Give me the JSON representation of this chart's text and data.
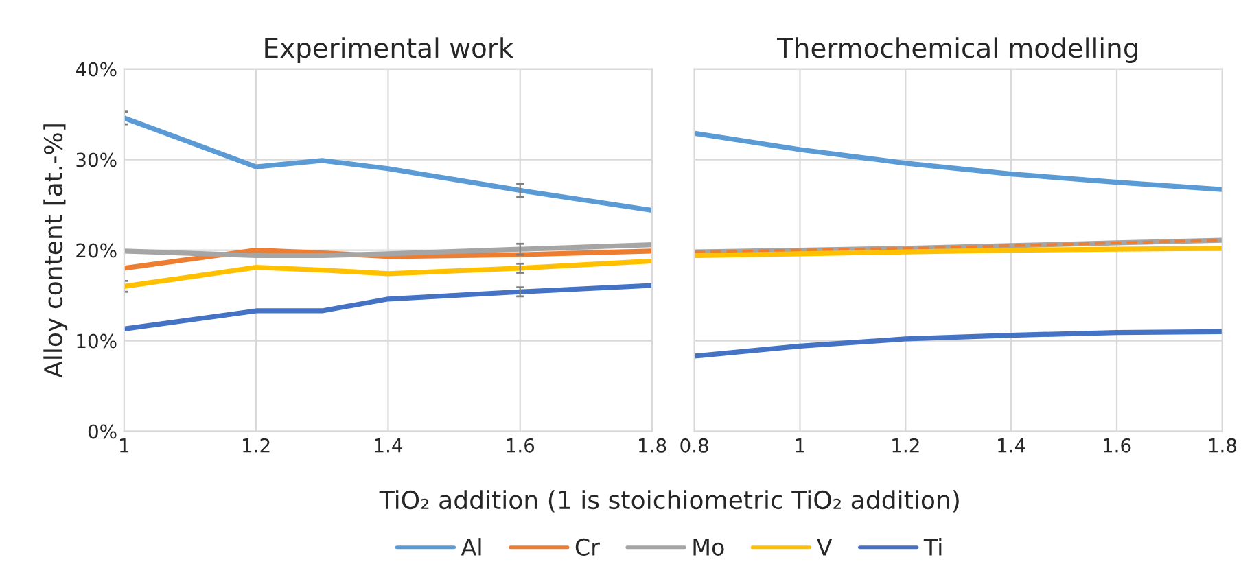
{
  "chart_data": [
    {
      "type": "line",
      "title": "Experimental work",
      "xlabel": "TiO₂ addition (1 is stoichiometric TiO₂ addition)",
      "ylabel": "Alloy content [at.-%]",
      "x": [
        1,
        1.2,
        1.3,
        1.4,
        1.6,
        1.8
      ],
      "xlim": [
        1,
        1.8
      ],
      "xticks": [
        1,
        1.2,
        1.4,
        1.6,
        1.8
      ],
      "ylim": [
        0,
        40
      ],
      "yticks": [
        {
          "value": 0,
          "label": "0%"
        },
        {
          "value": 10,
          "label": "10%"
        },
        {
          "value": 20,
          "label": "20%"
        },
        {
          "value": 30,
          "label": "30%"
        },
        {
          "value": 40,
          "label": "40%"
        }
      ],
      "grid": true,
      "legend": "bottom",
      "marker": "none",
      "series": [
        {
          "name": "Al",
          "color": "#5b9bd5",
          "values": [
            34.6,
            29.2,
            29.9,
            29.0,
            26.6,
            24.4
          ],
          "errors": [
            0.7,
            null,
            null,
            null,
            0.7,
            null
          ]
        },
        {
          "name": "Cr",
          "color": "#ed7d31",
          "values": [
            18.0,
            20.0,
            19.7,
            19.3,
            19.5,
            19.9
          ]
        },
        {
          "name": "Mo",
          "color": "#a5a5a5",
          "values": [
            19.9,
            19.4,
            19.4,
            19.6,
            20.1,
            20.6
          ],
          "errors": [
            null,
            null,
            null,
            null,
            0.6,
            null
          ]
        },
        {
          "name": "V",
          "color": "#ffc000",
          "values": [
            16.0,
            18.1,
            17.8,
            17.4,
            18.0,
            18.8
          ],
          "errors": [
            0.6,
            null,
            null,
            null,
            0.5,
            null
          ]
        },
        {
          "name": "Ti",
          "color": "#4472c4",
          "values": [
            11.3,
            13.3,
            13.3,
            14.6,
            15.4,
            16.1
          ],
          "errors": [
            null,
            null,
            null,
            null,
            0.5,
            null
          ]
        }
      ]
    },
    {
      "type": "line",
      "title": "Thermochemical modelling",
      "x": [
        0.8,
        1,
        1.2,
        1.4,
        1.6,
        1.8
      ],
      "xlim": [
        0.8,
        1.8
      ],
      "xticks": [
        0.8,
        1,
        1.2,
        1.4,
        1.6,
        1.8
      ],
      "ylim": [
        0,
        40
      ],
      "yticks": [
        0,
        10,
        20,
        30,
        40
      ],
      "tick_labels": "x",
      "grid": true,
      "marker": "none",
      "series": [
        {
          "name": "Al",
          "color": "#5b9bd5",
          "values": [
            32.9,
            31.1,
            29.6,
            28.4,
            27.5,
            26.7
          ]
        },
        {
          "name": "Mo",
          "color": "#a5a5a5",
          "values": [
            19.8,
            20.0,
            20.2,
            20.5,
            20.8,
            21.1
          ]
        },
        {
          "name": "Cr",
          "color": "#ed7d31",
          "values": [
            19.8,
            20.0,
            20.2,
            20.5,
            20.8,
            21.1
          ],
          "line_style": "dashed"
        },
        {
          "name": "V",
          "color": "#ffc000",
          "values": [
            19.4,
            19.6,
            19.8,
            20.0,
            20.1,
            20.2
          ]
        },
        {
          "name": "Ti",
          "color": "#4472c4",
          "values": [
            8.3,
            9.4,
            10.2,
            10.6,
            10.9,
            11.0
          ]
        }
      ]
    }
  ]
}
